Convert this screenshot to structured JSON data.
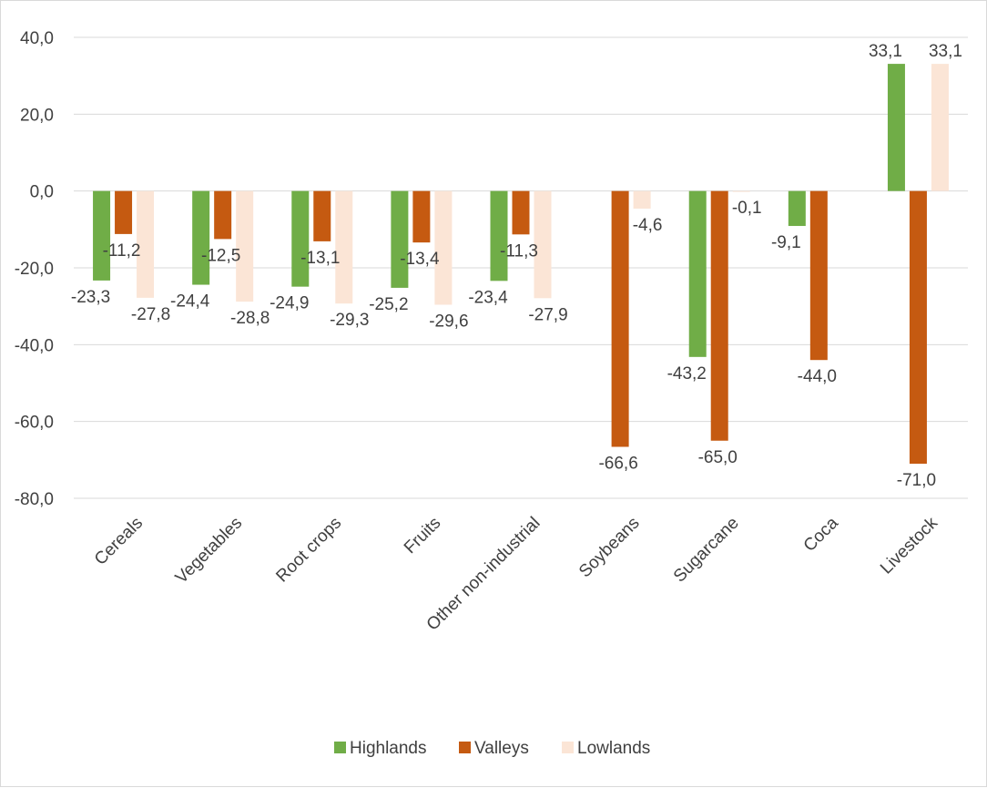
{
  "chart_data": {
    "type": "bar",
    "categories": [
      "Cereals",
      "Vegetables",
      "Root crops",
      "Fruits",
      "Other non-industrial",
      "Soybeans",
      "Sugarcane",
      "Coca",
      "Livestock"
    ],
    "series": [
      {
        "name": "Highlands",
        "color": "#70ad47",
        "values": [
          -23.3,
          -24.4,
          -24.9,
          -25.2,
          -23.4,
          null,
          -43.2,
          -9.1,
          33.1
        ],
        "labels": [
          "-23,3",
          "-24,4",
          "-24,9",
          "-25,2",
          "-23,4",
          "",
          "-43,2",
          "-9,1",
          "33,1"
        ]
      },
      {
        "name": "Valleys",
        "color": "#c55a11",
        "values": [
          -11.2,
          -12.5,
          -13.1,
          -13.4,
          -11.3,
          -66.6,
          -65.0,
          -44.0,
          -71.0
        ],
        "labels": [
          "-11,2",
          "-12,5",
          "-13,1",
          "-13,4",
          "-11,3",
          "-66,6",
          "-65,0",
          "-44,0",
          "-71,0"
        ]
      },
      {
        "name": "Lowlands",
        "color": "#fbe5d6",
        "values": [
          -27.8,
          -28.8,
          -29.3,
          -29.6,
          -27.9,
          -4.6,
          -0.1,
          null,
          33.1
        ],
        "labels": [
          "-27,8",
          "-28,8",
          "-29,3",
          "-29,6",
          "-27,9",
          "-4,6",
          "-0,1",
          "",
          "33,1"
        ]
      }
    ],
    "ylim": [
      -80,
      40
    ],
    "yticks": [
      40,
      20,
      0,
      -20,
      -40,
      -60,
      -80
    ],
    "ytick_labels": [
      "40,0",
      "20,0",
      "0,0",
      "-20,0",
      "-40,0",
      "-60,0",
      "-80,0"
    ],
    "grid": true,
    "legend_position": "bottom"
  }
}
